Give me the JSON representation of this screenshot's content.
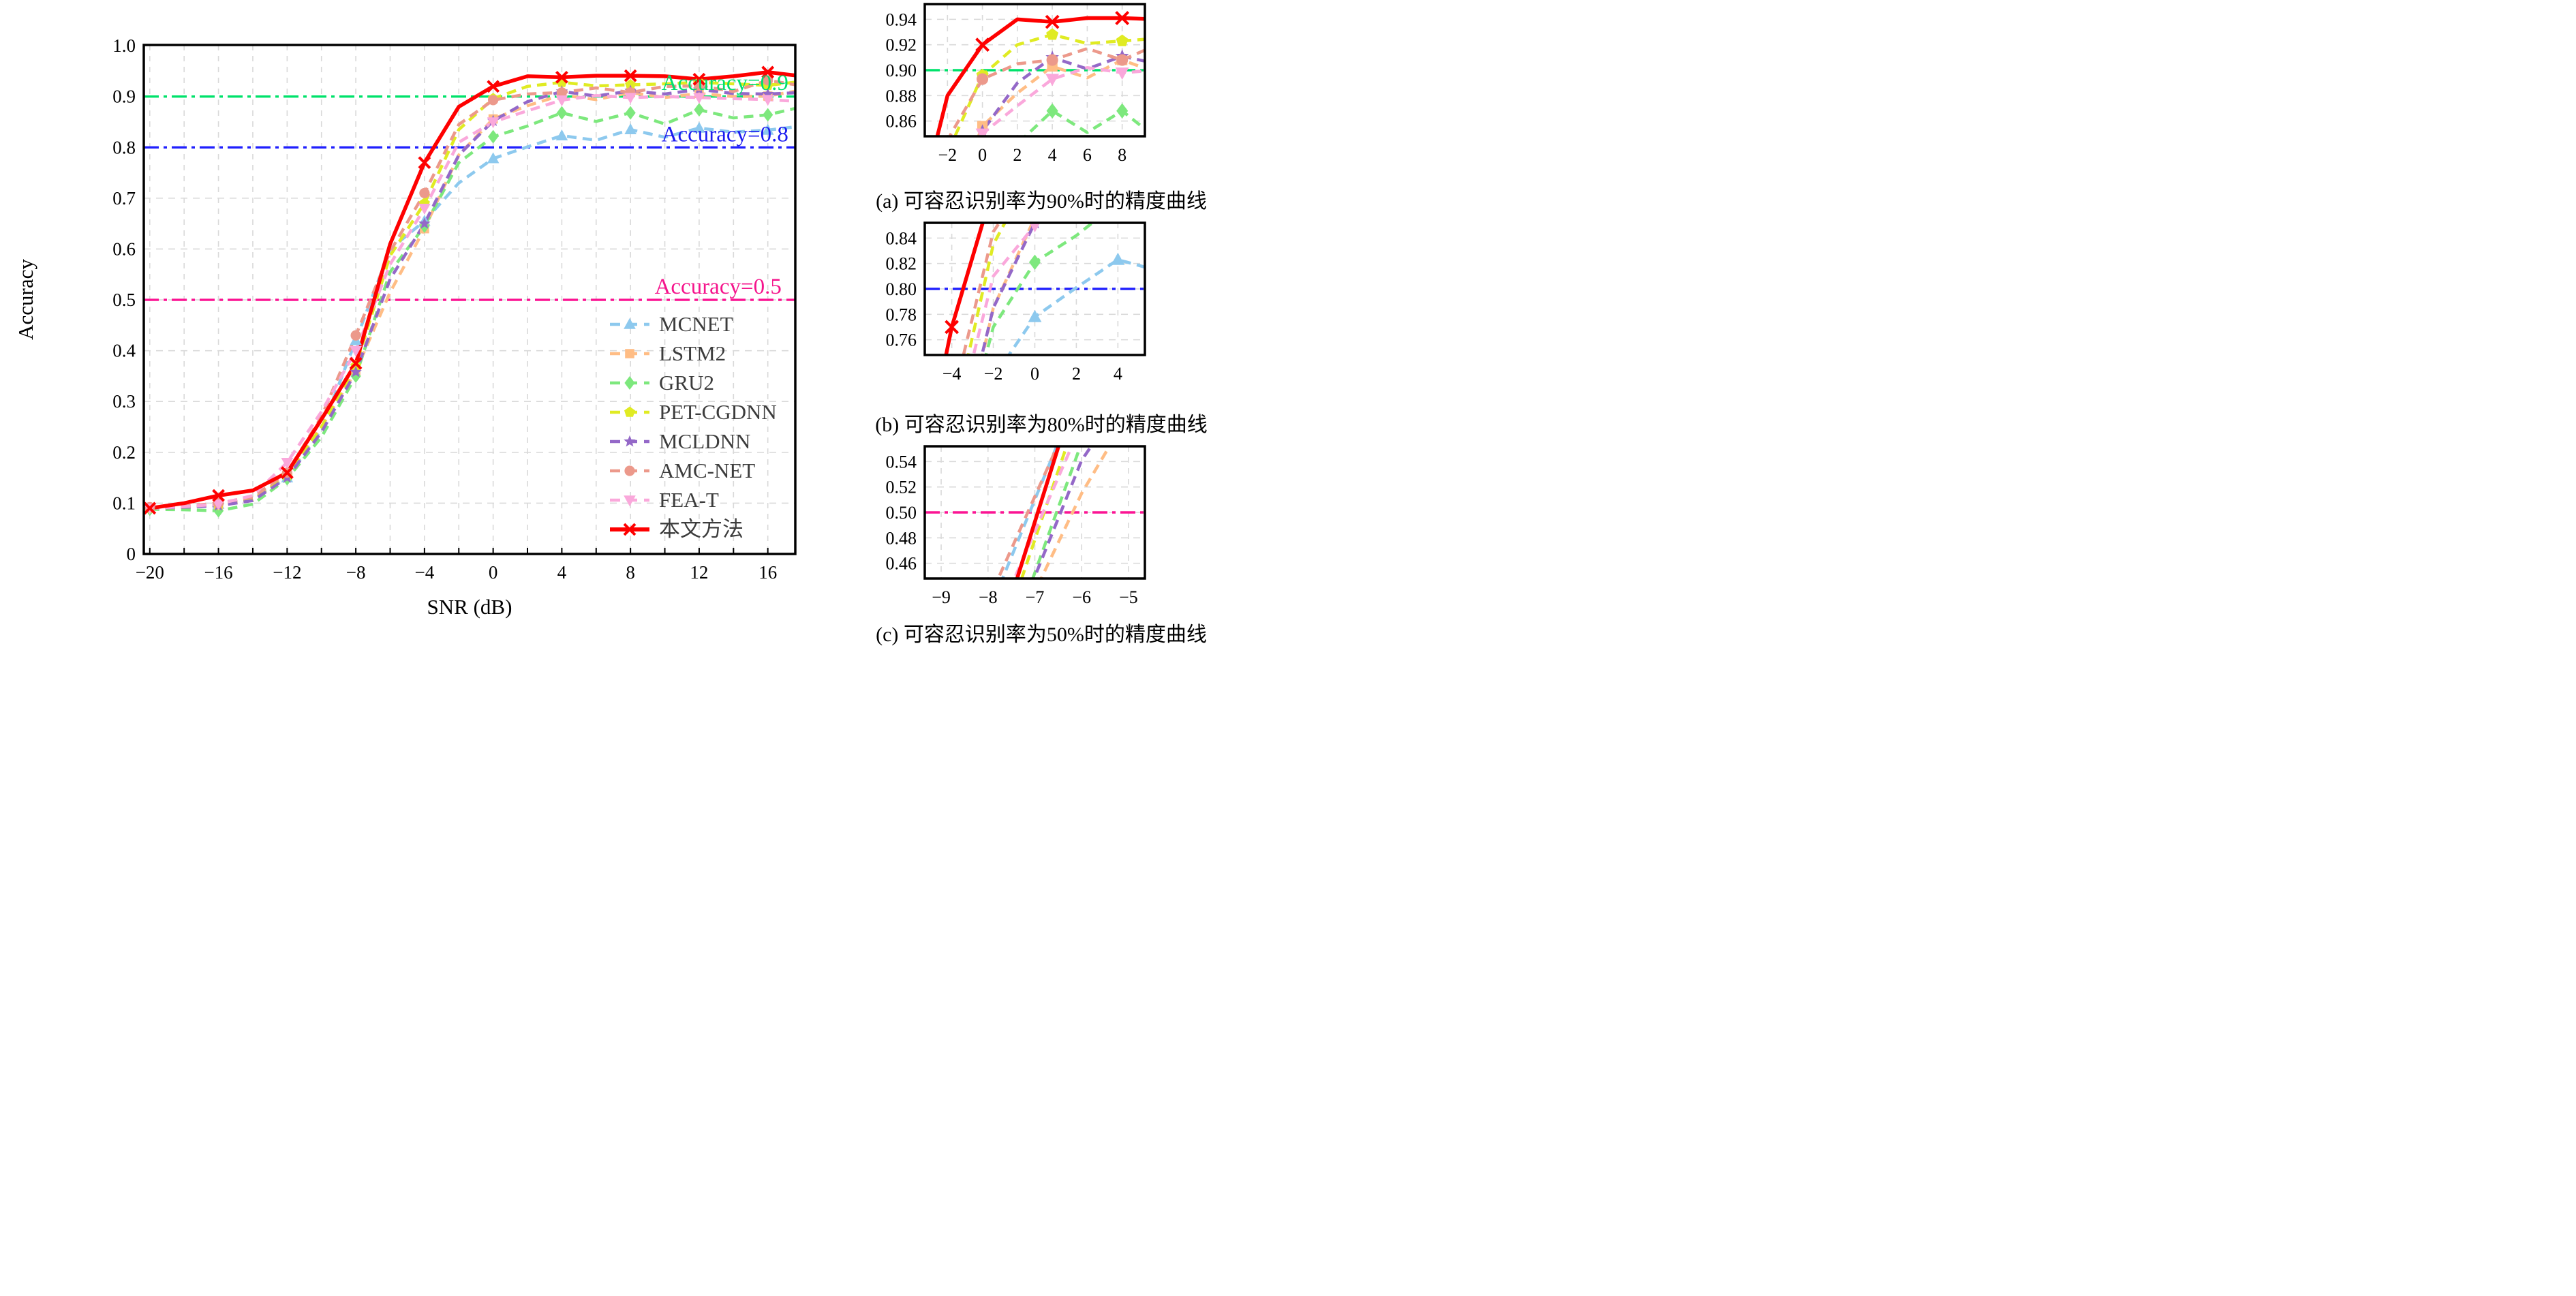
{
  "figure": {
    "captions": {
      "a": "(a) 可容忍识别率为90%时的精度曲线",
      "b": "(b) 可容忍识别率为80%时的精度曲线",
      "c": "(c) 可容忍识别率为50%时的精度曲线"
    }
  },
  "legend": {
    "items": [
      "MCNET",
      "LSTM2",
      "GRU2",
      "PET-CGDNN",
      "MCLDNN",
      "AMC-NET",
      "FEA-T",
      "本文方法"
    ],
    "text_color": "#3c3c3c"
  },
  "chart_data": {
    "type": "line",
    "title": "",
    "xlabel": "SNR (dB)",
    "ylabel": "Accuracy",
    "x": [
      -20,
      -18,
      -16,
      -14,
      -12,
      -10,
      -8,
      -6,
      -4,
      -2,
      0,
      2,
      4,
      6,
      8,
      10,
      12,
      14,
      16,
      18
    ],
    "series": [
      {
        "name": "MCNET",
        "color": "#8dc9ee",
        "marker": "triangle-up",
        "dashed": true,
        "values": [
          0.09,
          0.092,
          0.098,
          0.11,
          0.15,
          0.245,
          0.42,
          0.6,
          0.655,
          0.73,
          0.778,
          0.801,
          0.823,
          0.814,
          0.835,
          0.82,
          0.838,
          0.83,
          0.834,
          0.842
        ]
      },
      {
        "name": "LSTM2",
        "color": "#ffbd85",
        "marker": "square",
        "dashed": true,
        "values": [
          0.091,
          0.093,
          0.097,
          0.108,
          0.155,
          0.25,
          0.36,
          0.515,
          0.64,
          0.785,
          0.856,
          0.882,
          0.903,
          0.894,
          0.908,
          0.898,
          0.906,
          0.9,
          0.901,
          0.913
        ]
      },
      {
        "name": "GRU2",
        "color": "#7de87d",
        "marker": "diamond",
        "dashed": true,
        "values": [
          0.088,
          0.087,
          0.085,
          0.098,
          0.148,
          0.23,
          0.35,
          0.555,
          0.645,
          0.77,
          0.821,
          0.842,
          0.868,
          0.851,
          0.868,
          0.846,
          0.874,
          0.858,
          0.864,
          0.88
        ]
      },
      {
        "name": "PET-CGDNN",
        "color": "#e0eb23",
        "marker": "pentagon",
        "dashed": true,
        "values": [
          0.09,
          0.092,
          0.096,
          0.106,
          0.154,
          0.25,
          0.37,
          0.587,
          0.69,
          0.835,
          0.896,
          0.92,
          0.928,
          0.921,
          0.923,
          0.925,
          0.928,
          0.925,
          0.922,
          0.93
        ]
      },
      {
        "name": "MCLDNN",
        "color": "#9468c8",
        "marker": "star",
        "dashed": true,
        "values": [
          0.09,
          0.092,
          0.095,
          0.105,
          0.15,
          0.24,
          0.358,
          0.541,
          0.65,
          0.785,
          0.852,
          0.89,
          0.91,
          0.901,
          0.911,
          0.905,
          0.914,
          0.906,
          0.905,
          0.908
        ]
      },
      {
        "name": "AMC-NET",
        "color": "#ec998b",
        "marker": "circle",
        "dashed": true,
        "values": [
          0.092,
          0.094,
          0.1,
          0.112,
          0.16,
          0.27,
          0.43,
          0.595,
          0.71,
          0.845,
          0.893,
          0.905,
          0.908,
          0.917,
          0.908,
          0.92,
          0.921,
          0.91,
          0.932,
          0.921
        ]
      },
      {
        "name": "FEA-T",
        "color": "#faa8db",
        "marker": "triangle-down",
        "dashed": true,
        "values": [
          0.09,
          0.093,
          0.098,
          0.115,
          0.18,
          0.28,
          0.4,
          0.57,
          0.68,
          0.81,
          0.85,
          0.872,
          0.893,
          0.902,
          0.898,
          0.9,
          0.898,
          0.896,
          0.894,
          0.89
        ]
      },
      {
        "name": "本文方法",
        "color": "#fe0000",
        "marker": "x",
        "dashed": false,
        "values": [
          0.09,
          0.1,
          0.115,
          0.125,
          0.16,
          0.265,
          0.375,
          0.61,
          0.77,
          0.88,
          0.92,
          0.94,
          0.938,
          0.941,
          0.941,
          0.94,
          0.934,
          0.94,
          0.948,
          0.94
        ]
      }
    ],
    "main": {
      "xlim": [
        -20.35,
        17.6
      ],
      "ylim": [
        0,
        1.0015
      ],
      "xticks": [
        -20,
        -16,
        -12,
        -8,
        -4,
        0,
        4,
        8,
        12,
        16
      ],
      "xtick_labels": [
        "−20",
        "−16",
        "−12",
        "−8",
        "−4",
        "0",
        "4",
        "8",
        "12",
        "16"
      ],
      "yticks": [
        0,
        0.1,
        0.2,
        0.3,
        0.4,
        0.5,
        0.6,
        0.7,
        0.8,
        0.9,
        1.0
      ],
      "ytick_labels": [
        "0",
        "0.1",
        "0.2",
        "0.3",
        "0.4",
        "0.5",
        "0.6",
        "0.7",
        "0.8",
        "0.9",
        "1.0"
      ],
      "grid_x_step2": [
        -20,
        -18,
        -16,
        -14,
        -12,
        -10,
        -8,
        -6,
        -4,
        -2,
        0,
        2,
        4,
        6,
        8,
        10,
        12,
        14,
        16
      ],
      "grid_y_gray": [
        0.1,
        0.2,
        0.3,
        0.4,
        0.5,
        0.6,
        0.7
      ],
      "reflines": [
        {
          "y": 0.5,
          "color": "#fb1493"
        },
        {
          "y": 0.8,
          "color": "#2020fe"
        },
        {
          "y": 0.9,
          "color": "#00e26b"
        }
      ],
      "annotations": [
        {
          "text": "Accuracy=0.9",
          "color": "#00df6e",
          "x": 17.2,
          "y": 0.913
        },
        {
          "text": "Accuracy=0.8",
          "color": "#1a1af0",
          "x": 17.2,
          "y": 0.812
        },
        {
          "text": "Accuracy=0.5",
          "color": "#f5148c",
          "x": 16.8,
          "y": 0.512
        }
      ]
    },
    "insets": [
      {
        "id": "a",
        "xlim": [
          -3.3,
          9.3
        ],
        "ylim": [
          0.848,
          0.952
        ],
        "xticks": [
          -2,
          0,
          2,
          4,
          6,
          8
        ],
        "xtick_labels": [
          "−2",
          "0",
          "2",
          "4",
          "6",
          "8"
        ],
        "yticks": [
          0.86,
          0.88,
          0.9,
          0.92,
          0.94
        ],
        "ytick_labels": [
          "0.86",
          "0.88",
          "0.90",
          "0.92",
          "0.94"
        ],
        "refline": {
          "y": 0.9,
          "color": "#00e26b"
        }
      },
      {
        "id": "b",
        "xlim": [
          -5.3,
          5.3
        ],
        "ylim": [
          0.748,
          0.852
        ],
        "xticks": [
          -4,
          -2,
          0,
          2,
          4
        ],
        "xtick_labels": [
          "−4",
          "−2",
          "0",
          "2",
          "4"
        ],
        "yticks": [
          0.76,
          0.78,
          0.8,
          0.82,
          0.84
        ],
        "ytick_labels": [
          "0.76",
          "0.78",
          "0.80",
          "0.82",
          "0.84"
        ],
        "refline": {
          "y": 0.8,
          "color": "#2020fe"
        }
      },
      {
        "id": "c",
        "xlim": [
          -9.35,
          -4.65
        ],
        "ylim": [
          0.448,
          0.552
        ],
        "xticks": [
          -9,
          -8,
          -7,
          -6,
          -5
        ],
        "xtick_labels": [
          "−9",
          "−8",
          "−7",
          "−6",
          "−5"
        ],
        "yticks": [
          0.46,
          0.48,
          0.5,
          0.52,
          0.54
        ],
        "ytick_labels": [
          "0.46",
          "0.48",
          "0.50",
          "0.52",
          "0.54"
        ],
        "refline": {
          "y": 0.5,
          "color": "#fb1493"
        }
      }
    ]
  }
}
